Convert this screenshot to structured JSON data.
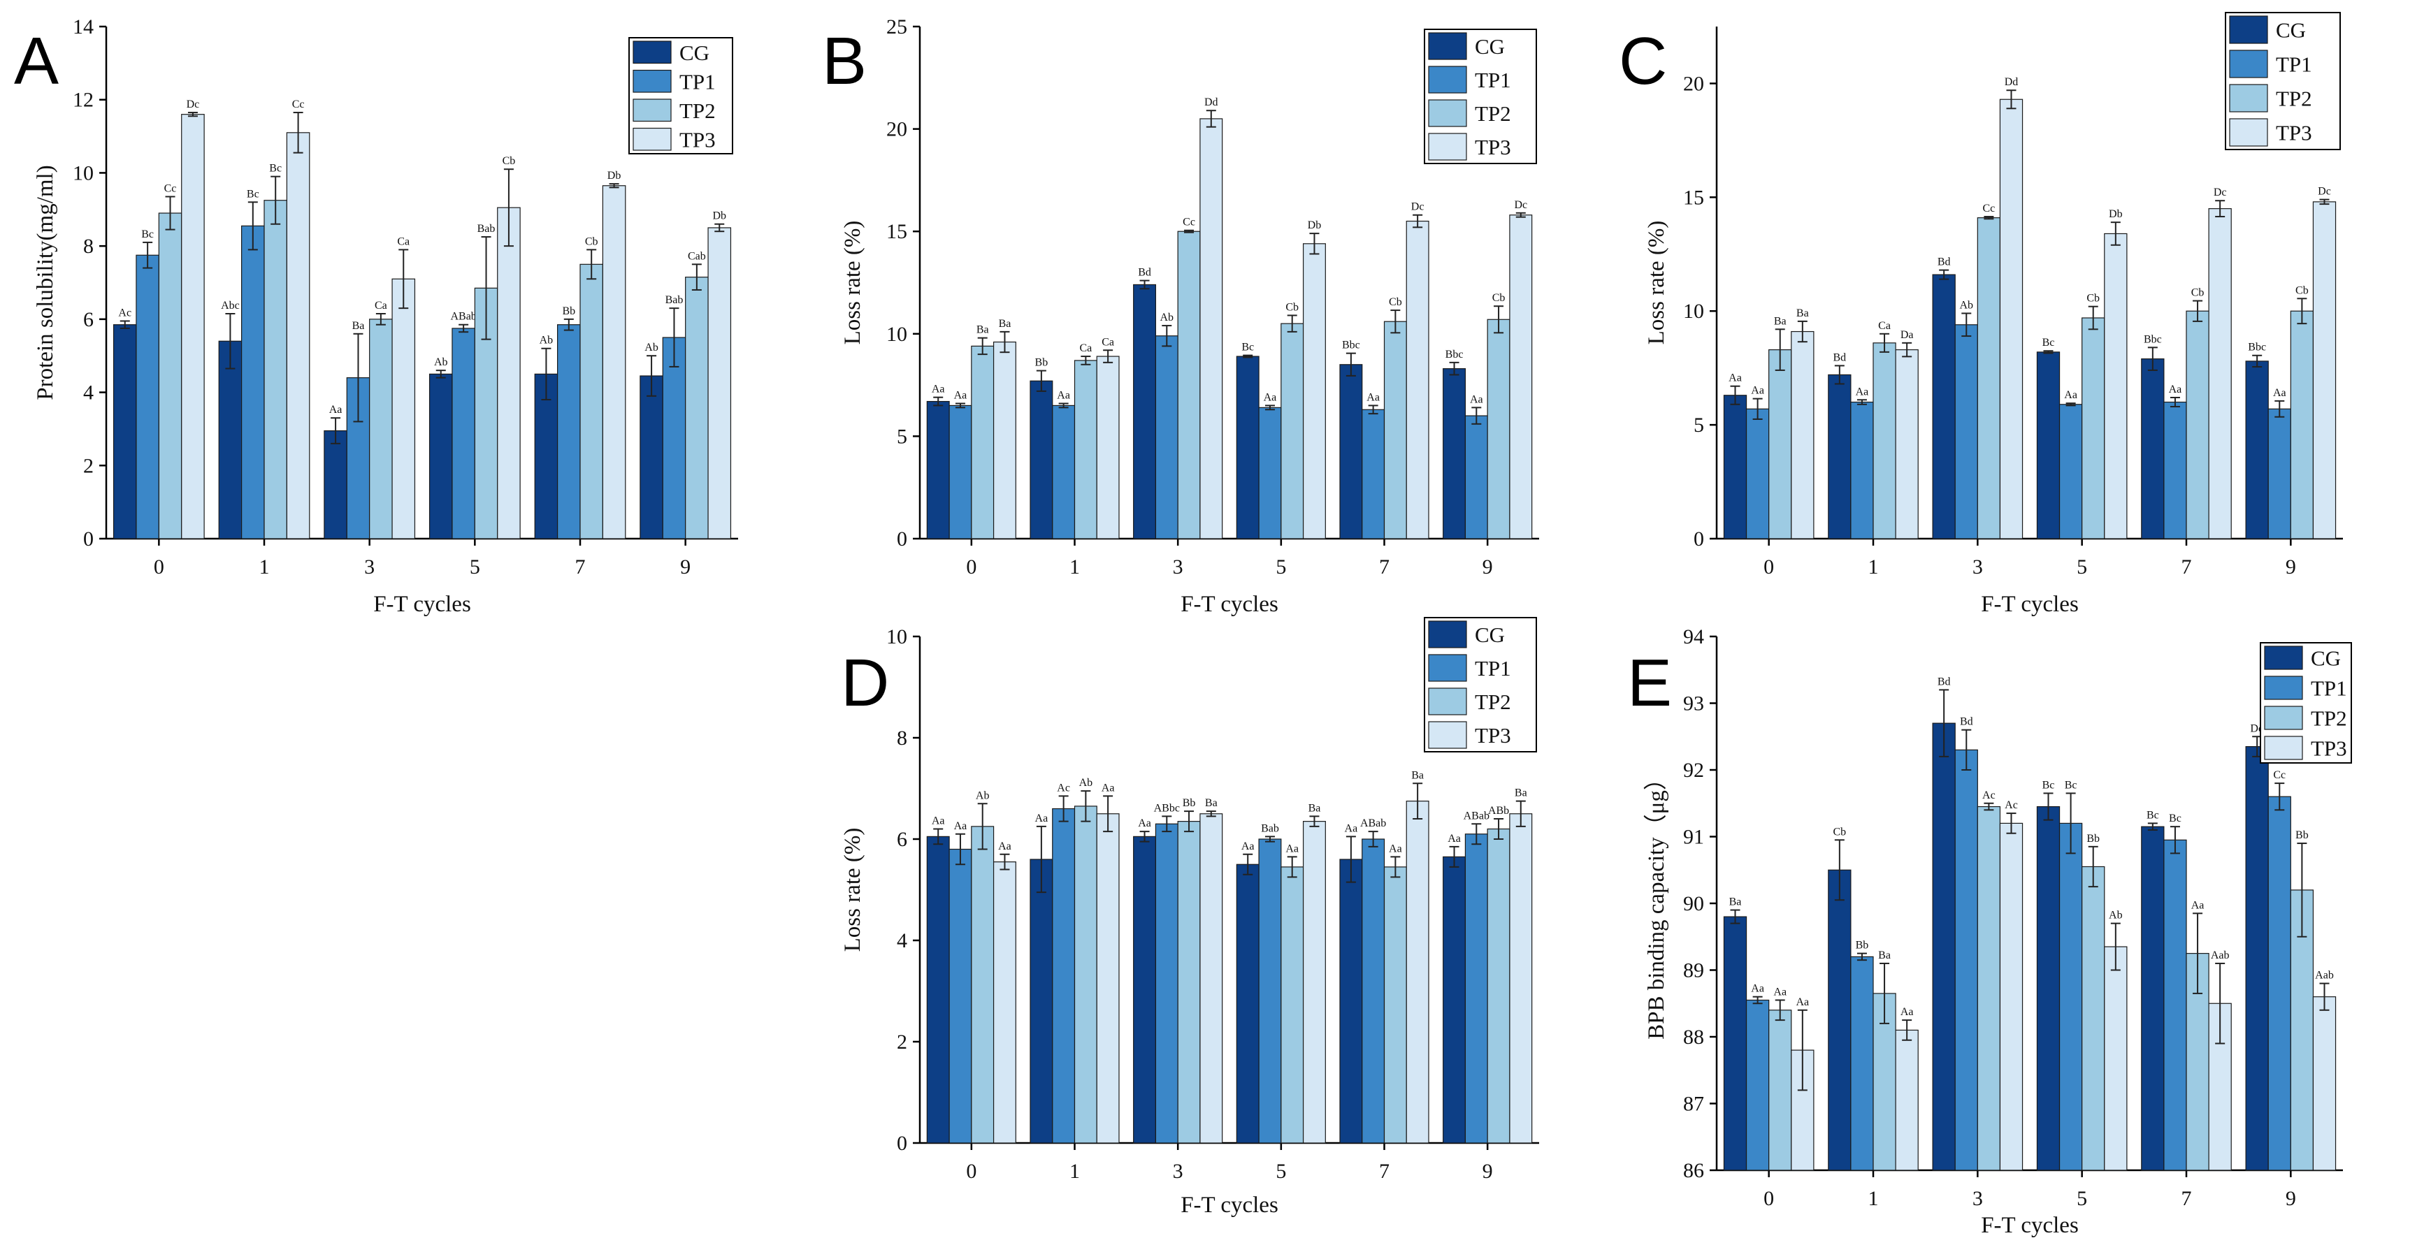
{
  "colors": {
    "CG": "#0d3f86",
    "TP1": "#3b87c8",
    "TP2": "#9dcbe3",
    "TP3": "#d5e7f5",
    "axis": "#000000"
  },
  "chart_data": [
    {
      "panel": "A",
      "type": "bar",
      "categories": [
        "0",
        "1",
        "3",
        "5",
        "7",
        "9"
      ],
      "xlabel": "F-T cycles",
      "ylabel": "Protein solubility(mg/ml)",
      "ylim": [
        0,
        14
      ],
      "yticks": [
        0,
        2,
        4,
        6,
        8,
        10,
        12,
        14
      ],
      "legend": "top-right",
      "series": [
        {
          "name": "CG",
          "values": [
            5.85,
            5.4,
            2.95,
            4.5,
            4.5,
            4.45
          ],
          "errors": [
            0.1,
            0.75,
            0.35,
            0.1,
            0.7,
            0.55
          ],
          "labels": [
            "Ac",
            "Abc",
            "Aa",
            "Ab",
            "Ab",
            "Ab"
          ]
        },
        {
          "name": "TP1",
          "values": [
            7.75,
            8.55,
            4.4,
            5.75,
            5.85,
            5.5
          ],
          "errors": [
            0.35,
            0.65,
            1.2,
            0.1,
            0.15,
            0.8
          ],
          "labels": [
            "Bc",
            "Bc",
            "Ba",
            "ABab",
            "Bb",
            "Bab"
          ]
        },
        {
          "name": "TP2",
          "values": [
            8.9,
            9.25,
            6.0,
            6.85,
            7.5,
            7.15
          ],
          "errors": [
            0.45,
            0.65,
            0.15,
            1.4,
            0.4,
            0.35
          ],
          "labels": [
            "Cc",
            "Bc",
            "Ca",
            "Bab",
            "Cb",
            "Cab"
          ]
        },
        {
          "name": "TP3",
          "values": [
            11.6,
            11.1,
            7.1,
            9.05,
            9.65,
            8.5
          ],
          "errors": [
            0.05,
            0.55,
            0.8,
            1.05,
            0.05,
            0.1
          ],
          "labels": [
            "Dc",
            "Cc",
            "Ca",
            "Cb",
            "Db",
            "Db"
          ]
        }
      ]
    },
    {
      "panel": "B",
      "type": "bar",
      "categories": [
        "0",
        "1",
        "3",
        "5",
        "7",
        "9"
      ],
      "xlabel": "F-T cycles",
      "ylabel": "Loss rate (%)",
      "ylim": [
        0,
        25
      ],
      "yticks": [
        0,
        5,
        10,
        15,
        20,
        25
      ],
      "legend": "top-right",
      "series": [
        {
          "name": "CG",
          "values": [
            6.7,
            7.7,
            12.4,
            8.9,
            8.5,
            8.3
          ],
          "errors": [
            0.2,
            0.5,
            0.2,
            0.05,
            0.55,
            0.3
          ],
          "labels": [
            "Aa",
            "Bb",
            "Bd",
            "Bc",
            "Bbc",
            "Bbc"
          ]
        },
        {
          "name": "TP1",
          "values": [
            6.5,
            6.5,
            9.9,
            6.4,
            6.3,
            6.0
          ],
          "errors": [
            0.1,
            0.1,
            0.5,
            0.1,
            0.2,
            0.4
          ],
          "labels": [
            "Aa",
            "Aa",
            "Ab",
            "Aa",
            "Aa",
            "Aa"
          ]
        },
        {
          "name": "TP2",
          "values": [
            9.4,
            8.7,
            15.0,
            10.5,
            10.6,
            10.7
          ],
          "errors": [
            0.4,
            0.2,
            0.05,
            0.4,
            0.55,
            0.65
          ],
          "labels": [
            "Ba",
            "Ca",
            "Cc",
            "Cb",
            "Cb",
            "Cb"
          ]
        },
        {
          "name": "TP3",
          "values": [
            9.6,
            8.9,
            20.5,
            14.4,
            15.5,
            15.8
          ],
          "errors": [
            0.5,
            0.3,
            0.4,
            0.5,
            0.3,
            0.1
          ],
          "labels": [
            "Ba",
            "Ca",
            "Dd",
            "Db",
            "Dc",
            "Dc"
          ]
        }
      ]
    },
    {
      "panel": "C",
      "type": "bar",
      "categories": [
        "0",
        "1",
        "3",
        "5",
        "7",
        "9"
      ],
      "xlabel": "F-T cycles",
      "ylabel": "Loss rate (%)",
      "ylim": [
        0,
        22.5
      ],
      "yticks": [
        0,
        5,
        10,
        15,
        20
      ],
      "legend": "top-right",
      "series": [
        {
          "name": "CG",
          "values": [
            6.3,
            7.2,
            11.6,
            8.2,
            7.9,
            7.8
          ],
          "errors": [
            0.4,
            0.4,
            0.2,
            0.05,
            0.5,
            0.25
          ],
          "labels": [
            "Aa",
            "Bd",
            "Bd",
            "Bc",
            "Bbc",
            "Bbc"
          ]
        },
        {
          "name": "TP1",
          "values": [
            5.7,
            6.0,
            9.4,
            5.9,
            6.0,
            5.7
          ],
          "errors": [
            0.45,
            0.1,
            0.5,
            0.05,
            0.2,
            0.35
          ],
          "labels": [
            "Aa",
            "Aa",
            "Ab",
            "Aa",
            "Aa",
            "Aa"
          ]
        },
        {
          "name": "TP2",
          "values": [
            8.3,
            8.6,
            14.1,
            9.7,
            10.0,
            10.0
          ],
          "errors": [
            0.9,
            0.4,
            0.05,
            0.5,
            0.45,
            0.55
          ],
          "labels": [
            "Ba",
            "Ca",
            "Cc",
            "Cb",
            "Cb",
            "Cb"
          ]
        },
        {
          "name": "TP3",
          "values": [
            9.1,
            8.3,
            19.3,
            13.4,
            14.5,
            14.8
          ],
          "errors": [
            0.45,
            0.3,
            0.4,
            0.5,
            0.35,
            0.1
          ],
          "labels": [
            "Ba",
            "Da",
            "Dd",
            "Db",
            "Dc",
            "Dc"
          ]
        }
      ]
    },
    {
      "panel": "D",
      "type": "bar",
      "categories": [
        "0",
        "1",
        "3",
        "5",
        "7",
        "9"
      ],
      "xlabel": "F-T cycles",
      "ylabel": "Loss rate (%)",
      "ylim": [
        0,
        10
      ],
      "yticks": [
        0,
        2,
        4,
        6,
        8,
        10
      ],
      "legend": "top-right",
      "series": [
        {
          "name": "CG",
          "values": [
            6.05,
            5.6,
            6.05,
            5.5,
            5.6,
            5.65
          ],
          "errors": [
            0.15,
            0.65,
            0.1,
            0.2,
            0.45,
            0.2
          ],
          "labels": [
            "Aa",
            "Aa",
            "Aa",
            "Aa",
            "Aa",
            "Aa"
          ]
        },
        {
          "name": "TP1",
          "values": [
            5.8,
            6.6,
            6.3,
            6.0,
            6.0,
            6.1
          ],
          "errors": [
            0.3,
            0.25,
            0.15,
            0.05,
            0.15,
            0.2
          ],
          "labels": [
            "Aa",
            "Ac",
            "ABbc",
            "Bab",
            "ABab",
            "ABab"
          ]
        },
        {
          "name": "TP2",
          "values": [
            6.25,
            6.65,
            6.35,
            5.45,
            5.45,
            6.2
          ],
          "errors": [
            0.45,
            0.3,
            0.2,
            0.2,
            0.2,
            0.2
          ],
          "labels": [
            "Ab",
            "Ab",
            "Bb",
            "Aa",
            "Aa",
            "ABb"
          ]
        },
        {
          "name": "TP3",
          "values": [
            5.55,
            6.5,
            6.5,
            6.35,
            6.75,
            6.5
          ],
          "errors": [
            0.15,
            0.35,
            0.05,
            0.1,
            0.35,
            0.25
          ],
          "labels": [
            "Aa",
            "Aa",
            "Ba",
            "Ba",
            "Ba",
            "Ba"
          ]
        }
      ]
    },
    {
      "panel": "E",
      "type": "bar",
      "categories": [
        "0",
        "1",
        "3",
        "5",
        "7",
        "9"
      ],
      "xlabel": "F-T cycles",
      "ylabel": "BPB binding capacity（μg）",
      "ylim": [
        86,
        94
      ],
      "yticks": [
        86,
        87,
        88,
        89,
        90,
        91,
        92,
        93,
        94
      ],
      "legend": "top-right",
      "series": [
        {
          "name": "CG",
          "values": [
            89.8,
            90.5,
            92.7,
            91.45,
            91.15,
            92.35
          ],
          "errors": [
            0.1,
            0.45,
            0.5,
            0.2,
            0.05,
            0.15
          ],
          "labels": [
            "Ba",
            "Cb",
            "Bd",
            "Bc",
            "Bc",
            "Dd"
          ]
        },
        {
          "name": "TP1",
          "values": [
            88.55,
            89.2,
            92.3,
            91.2,
            90.95,
            91.6
          ],
          "errors": [
            0.05,
            0.05,
            0.3,
            0.45,
            0.2,
            0.2
          ],
          "labels": [
            "Aa",
            "Bb",
            "Bd",
            "Bc",
            "Bc",
            "Cc"
          ]
        },
        {
          "name": "TP2",
          "values": [
            88.4,
            88.65,
            91.45,
            90.55,
            89.25,
            90.2
          ],
          "errors": [
            0.15,
            0.45,
            0.05,
            0.3,
            0.6,
            0.7
          ],
          "labels": [
            "Aa",
            "Ba",
            "Ac",
            "Bb",
            "Aa",
            "Bb"
          ]
        },
        {
          "name": "TP3",
          "values": [
            87.8,
            88.1,
            91.2,
            89.35,
            88.5,
            88.6
          ],
          "errors": [
            0.6,
            0.15,
            0.15,
            0.35,
            0.6,
            0.2
          ],
          "labels": [
            "Aa",
            "Aa",
            "Ac",
            "Ab",
            "Aab",
            "Aab"
          ]
        }
      ]
    }
  ]
}
